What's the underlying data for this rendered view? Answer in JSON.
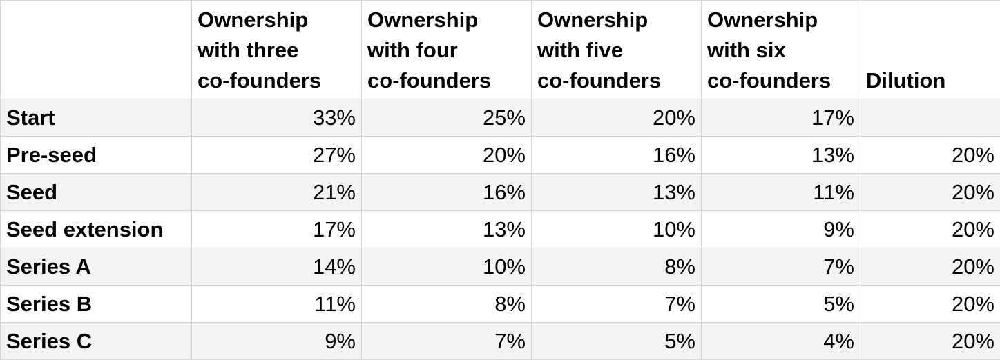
{
  "table": {
    "columns": [
      [
        "Ownership",
        "with three",
        "co-founders"
      ],
      [
        "Ownership",
        "with four",
        "co-founders"
      ],
      [
        "Ownership",
        "with five",
        "co-founders"
      ],
      [
        "Ownership",
        "with six",
        "co-founders"
      ],
      [
        "Dilution"
      ]
    ],
    "rows": [
      [
        "Start",
        "33%",
        "25%",
        "20%",
        "17%"
      ],
      [
        "Pre-seed",
        "27%",
        "20%",
        "16%",
        "13%",
        "20%"
      ],
      [
        "Seed",
        "21%",
        "16%",
        "13%",
        "11%",
        "20%"
      ],
      [
        "Seed extension",
        "17%",
        "13%",
        "10%",
        "9%",
        "20%"
      ],
      [
        "Series A",
        "14%",
        "10%",
        "8%",
        "7%",
        "20%"
      ],
      [
        "Series B",
        "11%",
        "8%",
        "7%",
        "5%",
        "20%"
      ],
      [
        "Series C",
        "9%",
        "7%",
        "5%",
        "4%",
        "20%"
      ]
    ]
  }
}
